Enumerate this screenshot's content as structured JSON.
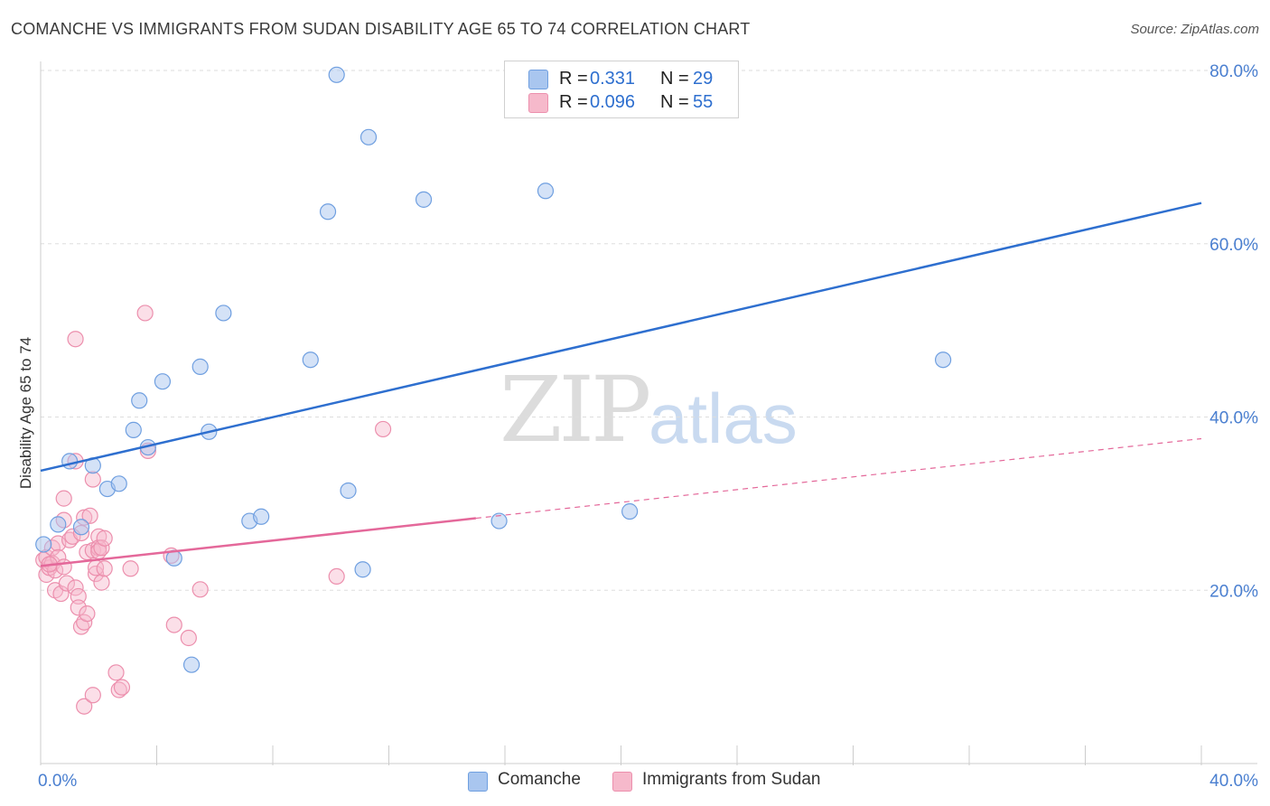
{
  "header": {
    "title": "COMANCHE VS IMMIGRANTS FROM SUDAN DISABILITY AGE 65 TO 74 CORRELATION CHART",
    "source": "Source: ZipAtlas.com"
  },
  "legend": {
    "r_label": "R =",
    "n_label": "N =",
    "comanche": {
      "r": "0.331",
      "n": "29"
    },
    "sudan": {
      "r": "0.096",
      "n": "55"
    }
  },
  "bottom_legend": {
    "comanche": "Comanche",
    "sudan": "Immigrants from Sudan"
  },
  "watermark": {
    "zip": "ZIP",
    "atlas": "atlas"
  },
  "colors": {
    "comanche_fill": "#a9c6ef",
    "comanche_stroke": "#6f9fe0",
    "comanche_line": "#2e6fcf",
    "sudan_fill": "#f6b9cb",
    "sudan_stroke": "#ec8fad",
    "sudan_line": "#e4689a",
    "tick_label": "#4a7fd0"
  },
  "chart_data": {
    "type": "scatter",
    "title": "COMANCHE VS IMMIGRANTS FROM SUDAN DISABILITY AGE 65 TO 74 CORRELATION CHART",
    "xlabel": "",
    "ylabel": "Disability Age 65 to 74",
    "xlim": [
      0,
      40
    ],
    "ylim": [
      0,
      80
    ],
    "x_tick_labels": [
      {
        "value": 0,
        "label": "0.0%"
      },
      {
        "value": 40,
        "label": "40.0%"
      }
    ],
    "y_tick_labels": [
      {
        "value": 20,
        "label": "20.0%"
      },
      {
        "value": 40,
        "label": "40.0%"
      },
      {
        "value": 60,
        "label": "60.0%"
      },
      {
        "value": 80,
        "label": "80.0%"
      }
    ],
    "series": [
      {
        "name": "Comanche",
        "r": 0.331,
        "n": 29,
        "trend": {
          "x0": 0,
          "y0": 33.8,
          "x1": 40,
          "y1": 64.7,
          "dashed_from": null
        },
        "points": [
          [
            0.1,
            25.3
          ],
          [
            0.6,
            27.6
          ],
          [
            1.0,
            34.9
          ],
          [
            1.4,
            27.3
          ],
          [
            1.8,
            34.4
          ],
          [
            2.3,
            31.7
          ],
          [
            2.7,
            32.3
          ],
          [
            3.2,
            38.5
          ],
          [
            3.4,
            41.9
          ],
          [
            3.7,
            36.5
          ],
          [
            4.2,
            44.1
          ],
          [
            4.6,
            23.7
          ],
          [
            5.2,
            11.4
          ],
          [
            5.5,
            45.8
          ],
          [
            5.8,
            38.3
          ],
          [
            6.3,
            52.0
          ],
          [
            7.2,
            28.0
          ],
          [
            7.6,
            28.5
          ],
          [
            9.3,
            46.6
          ],
          [
            9.9,
            63.7
          ],
          [
            10.2,
            79.5
          ],
          [
            10.6,
            31.5
          ],
          [
            11.1,
            22.4
          ],
          [
            11.3,
            72.3
          ],
          [
            13.2,
            65.1
          ],
          [
            15.8,
            28.0
          ],
          [
            17.4,
            66.1
          ],
          [
            20.3,
            29.1
          ],
          [
            31.1,
            46.6
          ]
        ]
      },
      {
        "name": "Immigrants from Sudan",
        "r": 0.096,
        "n": 55,
        "trend": {
          "x0": 0,
          "y0": 22.8,
          "x1": 40,
          "y1": 37.5,
          "dashed_from": 15
        },
        "points": [
          [
            0.1,
            23.5
          ],
          [
            0.2,
            21.8
          ],
          [
            0.2,
            23.8
          ],
          [
            0.3,
            22.6
          ],
          [
            0.4,
            24.9
          ],
          [
            0.4,
            23.1
          ],
          [
            0.5,
            20.0
          ],
          [
            0.5,
            22.3
          ],
          [
            0.6,
            25.4
          ],
          [
            0.6,
            23.8
          ],
          [
            0.7,
            19.6
          ],
          [
            0.8,
            22.7
          ],
          [
            0.8,
            28.1
          ],
          [
            0.8,
            30.6
          ],
          [
            0.9,
            20.8
          ],
          [
            1.0,
            25.8
          ],
          [
            1.1,
            26.2
          ],
          [
            1.2,
            20.3
          ],
          [
            1.2,
            34.9
          ],
          [
            1.2,
            49.0
          ],
          [
            1.3,
            19.3
          ],
          [
            1.3,
            18.0
          ],
          [
            1.4,
            26.6
          ],
          [
            1.4,
            15.8
          ],
          [
            1.5,
            6.6
          ],
          [
            1.5,
            16.3
          ],
          [
            1.5,
            28.4
          ],
          [
            1.6,
            17.3
          ],
          [
            1.6,
            24.4
          ],
          [
            1.7,
            28.6
          ],
          [
            1.8,
            24.6
          ],
          [
            1.8,
            7.9
          ],
          [
            1.8,
            32.8
          ],
          [
            1.9,
            21.9
          ],
          [
            1.9,
            22.6
          ],
          [
            2.0,
            26.2
          ],
          [
            2.0,
            24.9
          ],
          [
            2.0,
            24.5
          ],
          [
            2.1,
            20.9
          ],
          [
            2.1,
            24.9
          ],
          [
            2.2,
            22.5
          ],
          [
            2.2,
            26.0
          ],
          [
            2.6,
            10.5
          ],
          [
            2.7,
            8.5
          ],
          [
            2.8,
            8.8
          ],
          [
            3.1,
            22.5
          ],
          [
            3.6,
            52.0
          ],
          [
            3.7,
            36.1
          ],
          [
            4.5,
            24.0
          ],
          [
            4.6,
            16.0
          ],
          [
            5.1,
            14.5
          ],
          [
            5.5,
            20.1
          ],
          [
            10.2,
            21.6
          ],
          [
            11.8,
            38.6
          ],
          [
            0.3,
            23.0
          ]
        ]
      }
    ]
  }
}
